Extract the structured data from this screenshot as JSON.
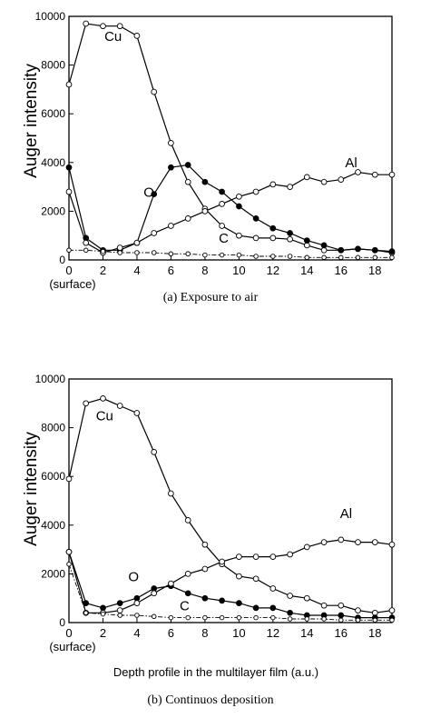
{
  "figure": {
    "shared_xlabel": "Depth profile in the multilayer film (a.u.)"
  },
  "chart_data": [
    {
      "type": "line",
      "caption": "(a)  Exposure to air",
      "ylabel": "Auger intensity",
      "xlabel": "",
      "x_origin_label": "(surface)",
      "xlim": [
        0,
        19
      ],
      "ylim": [
        0,
        10000
      ],
      "x_ticks": [
        0,
        2,
        4,
        6,
        8,
        10,
        12,
        14,
        16,
        18
      ],
      "y_ticks": [
        0,
        2000,
        4000,
        6000,
        8000,
        10000
      ],
      "grid": false,
      "legend": "inline-labels",
      "series": [
        {
          "name": "Cu",
          "marker": "open",
          "dash": false,
          "x": [
            0,
            1,
            2,
            3,
            4,
            5,
            6,
            7,
            8,
            9,
            10,
            11,
            12,
            13,
            14,
            15,
            16,
            17,
            18,
            19
          ],
          "y": [
            7200,
            9700,
            9600,
            9600,
            9200,
            6900,
            4800,
            3200,
            2100,
            1400,
            1000,
            900,
            900,
            850,
            600,
            400,
            400,
            450,
            400,
            300
          ]
        },
        {
          "name": "O",
          "marker": "filled",
          "dash": false,
          "x": [
            0,
            1,
            2,
            3,
            4,
            5,
            6,
            7,
            8,
            9,
            10,
            11,
            12,
            13,
            14,
            15,
            16,
            17,
            18,
            19
          ],
          "y": [
            3800,
            900,
            400,
            400,
            700,
            2700,
            3800,
            3900,
            3200,
            2800,
            2200,
            1700,
            1300,
            1100,
            800,
            600,
            400,
            450,
            400,
            350
          ]
        },
        {
          "name": "Al",
          "marker": "open",
          "dash": false,
          "x": [
            0,
            1,
            2,
            3,
            4,
            5,
            6,
            7,
            8,
            9,
            10,
            11,
            12,
            13,
            14,
            15,
            16,
            17,
            18,
            19
          ],
          "y": [
            2800,
            700,
            300,
            500,
            700,
            1100,
            1400,
            1700,
            2000,
            2300,
            2600,
            2800,
            3100,
            3000,
            3400,
            3200,
            3300,
            3600,
            3500,
            3500
          ]
        },
        {
          "name": "C",
          "marker": "open-small",
          "dash": true,
          "x": [
            0,
            1,
            2,
            3,
            4,
            5,
            6,
            7,
            8,
            9,
            10,
            11,
            12,
            13,
            14,
            15,
            16,
            17,
            18,
            19
          ],
          "y": [
            400,
            400,
            350,
            300,
            300,
            300,
            250,
            250,
            200,
            200,
            200,
            150,
            150,
            150,
            100,
            100,
            100,
            100,
            100,
            100
          ]
        }
      ],
      "labels": [
        {
          "text": "Cu",
          "x": 2.6,
          "y": 9000
        },
        {
          "text": "O",
          "x": 4.7,
          "y": 2600
        },
        {
          "text": "Al",
          "x": 16.6,
          "y": 3800
        },
        {
          "text": "C",
          "x": 9.1,
          "y": 700
        }
      ]
    },
    {
      "type": "line",
      "caption": "(b)  Continuos deposition",
      "ylabel": "Auger intensity",
      "xlabel": "Depth profile in the multilayer film (a.u.)",
      "x_origin_label": "(surface)",
      "xlim": [
        0,
        19
      ],
      "ylim": [
        0,
        10000
      ],
      "x_ticks": [
        0,
        2,
        4,
        6,
        8,
        10,
        12,
        14,
        16,
        18
      ],
      "y_ticks": [
        0,
        2000,
        4000,
        6000,
        8000,
        10000
      ],
      "grid": false,
      "legend": "inline-labels",
      "series": [
        {
          "name": "Cu",
          "marker": "open",
          "dash": false,
          "x": [
            0,
            1,
            2,
            3,
            4,
            5,
            6,
            7,
            8,
            9,
            10,
            11,
            12,
            13,
            14,
            15,
            16,
            17,
            18,
            19
          ],
          "y": [
            5900,
            9000,
            9200,
            8900,
            8600,
            7000,
            5300,
            4200,
            3200,
            2400,
            1900,
            1800,
            1400,
            1100,
            1000,
            700,
            700,
            500,
            400,
            500
          ]
        },
        {
          "name": "O",
          "marker": "filled",
          "dash": false,
          "x": [
            0,
            1,
            2,
            3,
            4,
            5,
            6,
            7,
            8,
            9,
            10,
            11,
            12,
            13,
            14,
            15,
            16,
            17,
            18,
            19
          ],
          "y": [
            2900,
            800,
            600,
            800,
            1000,
            1400,
            1500,
            1200,
            1000,
            900,
            800,
            600,
            600,
            400,
            300,
            300,
            300,
            200,
            200,
            200
          ]
        },
        {
          "name": "Al",
          "marker": "open",
          "dash": false,
          "x": [
            0,
            1,
            2,
            3,
            4,
            5,
            6,
            7,
            8,
            9,
            10,
            11,
            12,
            13,
            14,
            15,
            16,
            17,
            18,
            19
          ],
          "y": [
            2900,
            400,
            400,
            500,
            800,
            1200,
            1600,
            2000,
            2200,
            2500,
            2700,
            2700,
            2700,
            2800,
            3100,
            3300,
            3400,
            3300,
            3300,
            3200
          ]
        },
        {
          "name": "C",
          "marker": "open-small",
          "dash": true,
          "x": [
            0,
            1,
            2,
            3,
            4,
            5,
            6,
            7,
            8,
            9,
            10,
            11,
            12,
            13,
            14,
            15,
            16,
            17,
            18,
            19
          ],
          "y": [
            2400,
            400,
            350,
            300,
            300,
            250,
            200,
            200,
            200,
            200,
            200,
            200,
            200,
            150,
            150,
            150,
            100,
            100,
            100,
            100
          ]
        }
      ],
      "labels": [
        {
          "text": "Cu",
          "x": 2.1,
          "y": 8300
        },
        {
          "text": "O",
          "x": 3.8,
          "y": 1700
        },
        {
          "text": "Al",
          "x": 16.3,
          "y": 4300
        },
        {
          "text": "C",
          "x": 6.8,
          "y": 500
        }
      ]
    }
  ]
}
